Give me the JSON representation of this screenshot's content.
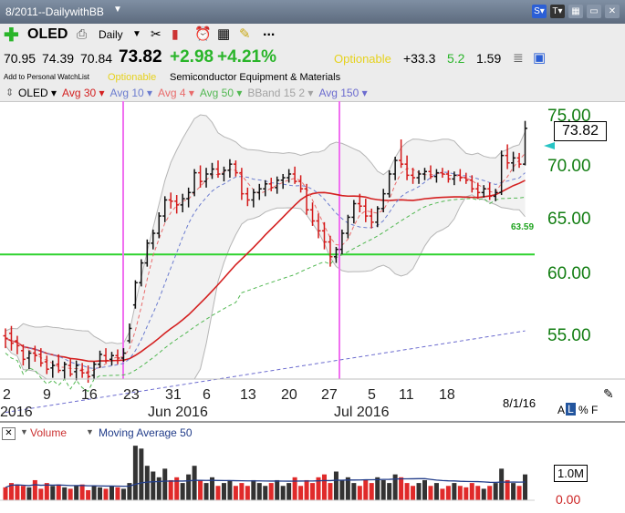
{
  "window": {
    "title": "8/2011--DailywithBB"
  },
  "toolbar": {
    "symbol": "OLED",
    "period": "Daily",
    "more": "..."
  },
  "quote": {
    "open": "70.95",
    "high": "74.39",
    "low": "70.84",
    "last": "73.82",
    "change": "+2.98",
    "change_pct": "+4.21%",
    "tag": "Optionable",
    "rating": "+33.3",
    "val1": "5.2",
    "val2": "1.59"
  },
  "info": {
    "watchlist": "Add to Personal WatchList",
    "optionable": "Optionable",
    "industry": "Semiconductor Equipment & Materials"
  },
  "indicators": [
    {
      "label": "OLED",
      "color": "#000000"
    },
    {
      "label": "Avg 30",
      "color": "#d42020"
    },
    {
      "label": "Avg 10",
      "color": "#6b7ccf"
    },
    {
      "label": "Avg 4",
      "color": "#e96b6b"
    },
    {
      "label": "Avg 50",
      "color": "#52b852"
    },
    {
      "label": "BBand 15 2",
      "color": "#a3a3a3"
    },
    {
      "label": "Avg 150",
      "color": "#6b6bcf"
    }
  ],
  "chart_data": {
    "type": "candlestick",
    "price_axis": {
      "ticks": [
        "75.00",
        "70.00",
        "65.00",
        "60.00",
        "55.00"
      ],
      "range": [
        53.5,
        76.0
      ]
    },
    "last_price": "73.82",
    "horizontal_line": {
      "value": 63.59,
      "label": "63.59"
    },
    "date_labels": [
      "2",
      "9",
      "16",
      "23",
      "31",
      "6",
      "13",
      "20",
      "27",
      "5",
      "11",
      "18"
    ],
    "month_labels": [
      "2016",
      "Jun 2016",
      "Jul 2016"
    ],
    "date_readout": "8/1/16",
    "ohlc": [
      [
        57.0,
        57.6,
        56.0,
        56.8
      ],
      [
        57.2,
        57.8,
        55.8,
        56.4
      ],
      [
        56.6,
        57.0,
        55.5,
        56.2
      ],
      [
        55.8,
        56.3,
        54.6,
        55.1
      ],
      [
        55.2,
        55.8,
        54.3,
        55.6
      ],
      [
        55.6,
        56.2,
        54.9,
        55.4
      ],
      [
        55.5,
        56.0,
        54.5,
        54.8
      ],
      [
        54.9,
        55.4,
        53.9,
        54.3
      ],
      [
        54.4,
        55.0,
        53.6,
        54.6
      ],
      [
        54.7,
        55.5,
        54.0,
        54.2
      ],
      [
        54.2,
        54.9,
        53.5,
        54.7
      ],
      [
        54.6,
        55.2,
        53.7,
        53.9
      ],
      [
        54.1,
        55.0,
        53.4,
        54.6
      ],
      [
        54.2,
        54.8,
        53.6,
        54.0
      ],
      [
        54.0,
        54.6,
        53.2,
        53.7
      ],
      [
        53.8,
        54.9,
        53.5,
        54.7
      ],
      [
        54.7,
        55.8,
        54.4,
        55.5
      ],
      [
        55.4,
        56.0,
        54.8,
        55.0
      ],
      [
        55.1,
        55.7,
        54.6,
        55.4
      ],
      [
        55.4,
        55.9,
        54.7,
        55.2
      ],
      [
        55.2,
        56.0,
        54.9,
        55.6
      ],
      [
        56.6,
        58.0,
        56.4,
        57.6
      ],
      [
        59.5,
        61.5,
        59.2,
        61.3
      ],
      [
        61.3,
        63.2,
        61.0,
        62.9
      ],
      [
        62.9,
        64.8,
        62.6,
        64.5
      ],
      [
        64.5,
        65.6,
        64.0,
        65.3
      ],
      [
        65.3,
        67.0,
        64.9,
        66.7
      ],
      [
        66.7,
        68.3,
        66.2,
        68.0
      ],
      [
        68.0,
        68.6,
        67.3,
        67.9
      ],
      [
        67.9,
        68.4,
        66.9,
        67.6
      ],
      [
        67.6,
        68.5,
        67.0,
        68.1
      ],
      [
        68.1,
        69.0,
        67.4,
        68.6
      ],
      [
        68.6,
        70.5,
        68.3,
        70.2
      ],
      [
        70.2,
        70.8,
        69.0,
        69.5
      ],
      [
        69.5,
        70.6,
        69.0,
        70.1
      ],
      [
        70.1,
        71.0,
        69.7,
        70.5
      ],
      [
        70.5,
        71.2,
        69.8,
        70.1
      ],
      [
        70.1,
        70.7,
        69.5,
        70.4
      ],
      [
        70.4,
        71.3,
        69.8,
        70.9
      ],
      [
        70.9,
        71.2,
        69.9,
        70.2
      ],
      [
        70.2,
        70.6,
        68.0,
        68.5
      ],
      [
        68.5,
        69.0,
        67.5,
        68.0
      ],
      [
        68.0,
        68.9,
        67.4,
        68.6
      ],
      [
        68.6,
        69.3,
        68.0,
        68.9
      ],
      [
        68.9,
        69.6,
        68.3,
        69.3
      ],
      [
        69.3,
        69.8,
        68.7,
        69.0
      ],
      [
        69.0,
        69.9,
        68.5,
        69.6
      ],
      [
        69.6,
        70.1,
        68.9,
        69.8
      ],
      [
        69.8,
        70.5,
        69.4,
        70.1
      ],
      [
        70.1,
        70.7,
        69.3,
        69.5
      ],
      [
        69.5,
        70.0,
        68.6,
        68.9
      ],
      [
        68.9,
        69.3,
        66.8,
        67.2
      ],
      [
        67.2,
        67.8,
        65.9,
        66.3
      ],
      [
        66.3,
        66.9,
        64.9,
        65.5
      ],
      [
        65.5,
        66.2,
        64.0,
        64.6
      ],
      [
        64.6,
        65.1,
        62.6,
        63.4
      ],
      [
        63.4,
        64.2,
        62.9,
        64.0
      ],
      [
        64.0,
        65.6,
        63.6,
        65.3
      ],
      [
        65.3,
        66.8,
        64.9,
        66.6
      ],
      [
        66.6,
        68.0,
        66.1,
        67.7
      ],
      [
        67.7,
        68.5,
        67.0,
        67.5
      ],
      [
        67.5,
        68.1,
        66.2,
        66.7
      ],
      [
        66.7,
        67.3,
        65.7,
        66.2
      ],
      [
        66.2,
        67.5,
        65.8,
        67.3
      ],
      [
        67.3,
        68.9,
        67.0,
        68.5
      ],
      [
        68.5,
        70.4,
        68.2,
        70.1
      ],
      [
        70.1,
        71.5,
        69.6,
        71.2
      ],
      [
        71.2,
        72.9,
        70.6,
        70.9
      ],
      [
        70.9,
        71.6,
        69.6,
        70.0
      ],
      [
        70.0,
        70.6,
        69.3,
        69.8
      ],
      [
        69.8,
        70.4,
        69.3,
        70.1
      ],
      [
        70.1,
        70.6,
        69.6,
        70.3
      ],
      [
        70.3,
        70.8,
        69.7,
        69.9
      ],
      [
        69.9,
        70.5,
        69.4,
        70.2
      ],
      [
        70.2,
        70.6,
        69.8,
        70.1
      ],
      [
        70.1,
        70.4,
        69.4,
        69.7
      ],
      [
        69.7,
        70.3,
        69.2,
        70.0
      ],
      [
        70.0,
        70.5,
        69.5,
        69.8
      ],
      [
        69.8,
        70.2,
        69.3,
        69.6
      ],
      [
        69.6,
        70.0,
        68.6,
        68.9
      ],
      [
        68.9,
        69.4,
        68.1,
        68.6
      ],
      [
        68.6,
        69.2,
        68.2,
        68.9
      ],
      [
        68.9,
        69.4,
        68.0,
        68.3
      ],
      [
        68.3,
        68.9,
        67.9,
        68.6
      ],
      [
        68.6,
        72.0,
        68.4,
        71.6
      ],
      [
        71.6,
        72.5,
        70.5,
        71.0
      ],
      [
        71.0,
        71.9,
        70.3,
        71.4
      ],
      [
        71.4,
        71.8,
        70.6,
        70.9
      ],
      [
        70.9,
        74.4,
        70.8,
        73.8
      ]
    ],
    "volume_axis": {
      "ticks": [
        "1.0M",
        "0.00"
      ],
      "max": 2.0
    },
    "volume_title": "Volume",
    "volume_ma_label": "Moving Average 50",
    "volume": [
      0.45,
      0.6,
      0.55,
      0.5,
      0.45,
      0.7,
      0.4,
      0.6,
      0.5,
      0.55,
      0.45,
      0.4,
      0.5,
      0.55,
      0.35,
      0.5,
      0.45,
      0.4,
      0.5,
      0.45,
      0.4,
      0.6,
      1.9,
      1.8,
      1.2,
      1.0,
      0.8,
      1.1,
      0.7,
      0.8,
      0.6,
      0.9,
      1.2,
      0.7,
      0.6,
      0.8,
      0.5,
      0.6,
      0.7,
      0.5,
      0.6,
      0.5,
      0.7,
      0.6,
      0.5,
      0.6,
      0.7,
      0.5,
      0.6,
      0.8,
      0.5,
      0.7,
      0.6,
      0.8,
      0.9,
      0.6,
      1.0,
      0.7,
      0.8,
      0.6,
      0.5,
      0.7,
      0.6,
      0.8,
      0.7,
      0.6,
      0.9,
      0.8,
      0.6,
      0.5,
      0.6,
      0.7,
      0.5,
      0.6,
      0.4,
      0.5,
      0.6,
      0.5,
      0.45,
      0.6,
      0.5,
      0.4,
      0.5,
      0.6,
      1.1,
      0.7,
      0.6,
      0.5,
      0.9
    ]
  },
  "colors": {
    "up": "#111111",
    "down": "#d41a1a",
    "vline": "#f070f0",
    "hline": "#2ed22e",
    "band": "#f2f2f2",
    "price_tag": "#137e13"
  },
  "side_panel": {
    "a_label": "A",
    "l_label": "L",
    "pct_label": "%",
    "f_label": "F"
  }
}
